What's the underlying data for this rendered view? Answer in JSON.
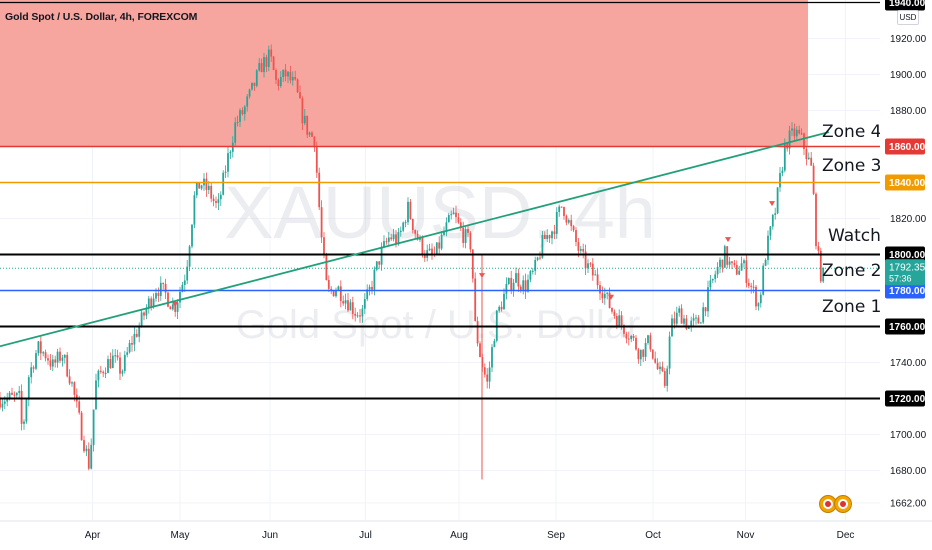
{
  "header": {
    "symbol_title": "Gold Spot / U.S. Dollar, 4h, FOREXCOM",
    "currency": "USD"
  },
  "watermark": {
    "ticker": "XAUUSD, 4h",
    "name": "Gold Spot / U.S. Dollar"
  },
  "colors": {
    "up": "#26a69a",
    "down": "#ef5350",
    "zone_fill": "#f7a19a",
    "trendline": "#22a07a",
    "orange_line": "#f09c00",
    "red_line": "#e53935",
    "blue_line": "#2962ff",
    "black_line": "#000000",
    "current_price_tag": "#26a69a"
  },
  "chart_data": {
    "type": "candlestick",
    "title": "Gold Spot / U.S. Dollar, 4h, FOREXCOM",
    "ylim": [
      1655,
      1945
    ],
    "x_tick_labels": [
      "Apr",
      "May",
      "Jun",
      "Jul",
      "Aug",
      "Sep",
      "Oct",
      "Nov",
      "Dec"
    ],
    "y_tick_labels": [
      "1920.00",
      "1900.00",
      "1880.00",
      "1820.00",
      "1740.00",
      "1700.00",
      "1680.00",
      "1662.00"
    ],
    "y_tick_values": [
      1920,
      1900,
      1880,
      1820,
      1740,
      1700,
      1680,
      1662
    ],
    "series": [
      {
        "kind": "close_path",
        "points": [
          [
            "Mar 8",
            1720
          ],
          [
            "Mar 9",
            1700
          ],
          [
            "Mar 11",
            1732
          ],
          [
            "Mar 14",
            1748
          ],
          [
            "Mar 17",
            1744
          ],
          [
            "Mar 19",
            1738
          ],
          [
            "Mar 22",
            1745
          ],
          [
            "Mar 25",
            1730
          ],
          [
            "Mar 28",
            1705
          ],
          [
            "Mar 31",
            1682
          ],
          [
            "Apr 2",
            1728
          ],
          [
            "Apr 5",
            1738
          ],
          [
            "Apr 8",
            1742
          ],
          [
            "Apr 11",
            1735
          ],
          [
            "Apr 14",
            1750
          ],
          [
            "Apr 17",
            1760
          ],
          [
            "Apr 20",
            1772
          ],
          [
            "Apr 23",
            1782
          ],
          [
            "Apr 26",
            1778
          ],
          [
            "Apr 29",
            1770
          ],
          [
            "May 1",
            1780
          ],
          [
            "May 3",
            1790
          ],
          [
            "May 6",
            1832
          ],
          [
            "May 8",
            1840
          ],
          [
            "May 11",
            1835
          ],
          [
            "May 14",
            1825
          ],
          [
            "May 17",
            1850
          ],
          [
            "May 20",
            1872
          ],
          [
            "May 23",
            1880
          ],
          [
            "May 26",
            1892
          ],
          [
            "May 29",
            1905
          ],
          [
            "Jun 1",
            1910
          ],
          [
            "Jun 3",
            1895
          ],
          [
            "Jun 6",
            1900
          ],
          [
            "Jun 9",
            1893
          ],
          [
            "Jun 11",
            1878
          ],
          [
            "Jun 13",
            1868
          ],
          [
            "Jun 15",
            1864
          ],
          [
            "Jun 17",
            1812
          ],
          [
            "Jun 19",
            1778
          ],
          [
            "Jun 22",
            1782
          ],
          [
            "Jun 25",
            1775
          ],
          [
            "Jun 28",
            1768
          ],
          [
            "Jun 30",
            1768
          ],
          [
            "Jul 3",
            1783
          ],
          [
            "Jul 6",
            1800
          ],
          [
            "Jul 9",
            1810
          ],
          [
            "Jul 12",
            1808
          ],
          [
            "Jul 15",
            1826
          ],
          [
            "Jul 18",
            1810
          ],
          [
            "Jul 21",
            1800
          ],
          [
            "Jul 24",
            1799
          ],
          [
            "Jul 27",
            1812
          ],
          [
            "Jul 30",
            1822
          ],
          [
            "Aug 2",
            1812
          ],
          [
            "Aug 5",
            1805
          ],
          [
            "Aug 6",
            1762
          ],
          [
            "Aug 8",
            1742
          ],
          [
            "Aug 10",
            1728
          ],
          [
            "Aug 13",
            1765
          ],
          [
            "Aug 16",
            1780
          ],
          [
            "Aug 19",
            1788
          ],
          [
            "Aug 22",
            1782
          ],
          [
            "Aug 25",
            1790
          ],
          [
            "Aug 28",
            1808
          ],
          [
            "Aug 31",
            1814
          ],
          [
            "Sep 3",
            1828
          ],
          [
            "Sep 6",
            1812
          ],
          [
            "Sep 9",
            1798
          ],
          [
            "Sep 12",
            1790
          ],
          [
            "Sep 15",
            1782
          ],
          [
            "Sep 18",
            1770
          ],
          [
            "Sep 21",
            1762
          ],
          [
            "Sep 24",
            1755
          ],
          [
            "Sep 27",
            1745
          ],
          [
            "Sep 30",
            1752
          ],
          [
            "Oct 2",
            1738
          ],
          [
            "Oct 5",
            1728
          ],
          [
            "Oct 7",
            1760
          ],
          [
            "Oct 10",
            1768
          ],
          [
            "Oct 13",
            1760
          ],
          [
            "Oct 16",
            1762
          ],
          [
            "Oct 19",
            1775
          ],
          [
            "Oct 22",
            1790
          ],
          [
            "Oct 25",
            1800
          ],
          [
            "Oct 28",
            1790
          ],
          [
            "Oct 31",
            1795
          ],
          [
            "Nov 2",
            1785
          ],
          [
            "Nov 5",
            1772
          ],
          [
            "Nov 7",
            1800
          ],
          [
            "Nov 10",
            1825
          ],
          [
            "Nov 13",
            1862
          ],
          [
            "Nov 16",
            1868
          ],
          [
            "Nov 18",
            1863
          ],
          [
            "Nov 21",
            1846
          ],
          [
            "Nov 22",
            1812
          ],
          [
            "Nov 23",
            1795
          ],
          [
            "Nov 24",
            1786
          ],
          [
            "Nov 25",
            1792.35
          ]
        ]
      }
    ],
    "resistance_zone": {
      "from": 1860,
      "to": 1943
    },
    "annotations": [
      {
        "label": "Zone 4",
        "kind": "trendline",
        "points": [
          [
            "Mar 1",
            1749
          ],
          [
            "Nov 26",
            1868
          ]
        ]
      },
      {
        "label": "Zone 3",
        "kind": "horizontal",
        "value": 1840,
        "price_tag": "1840.00"
      },
      {
        "label": "Watch",
        "kind": "horizontal",
        "value": 1800,
        "price_tag": "1800.00"
      },
      {
        "label": "Zone 2",
        "kind": "horizontal",
        "value": 1780,
        "price_tag": "1780.00"
      },
      {
        "label": "Zone 1",
        "kind": "horizontal",
        "value": 1760,
        "price_tag": "1760.00"
      },
      {
        "label": "",
        "kind": "horizontal",
        "value": 1720,
        "price_tag": "1720.00"
      },
      {
        "label": "",
        "kind": "horizontal",
        "value": 1940,
        "price_tag": "1940.00"
      },
      {
        "label": "",
        "kind": "zone_top_edge",
        "value": 1860,
        "price_tag": "1860.00"
      }
    ],
    "current_price": {
      "value": 1792.35,
      "label": "1792.35",
      "countdown": "57:36"
    }
  }
}
